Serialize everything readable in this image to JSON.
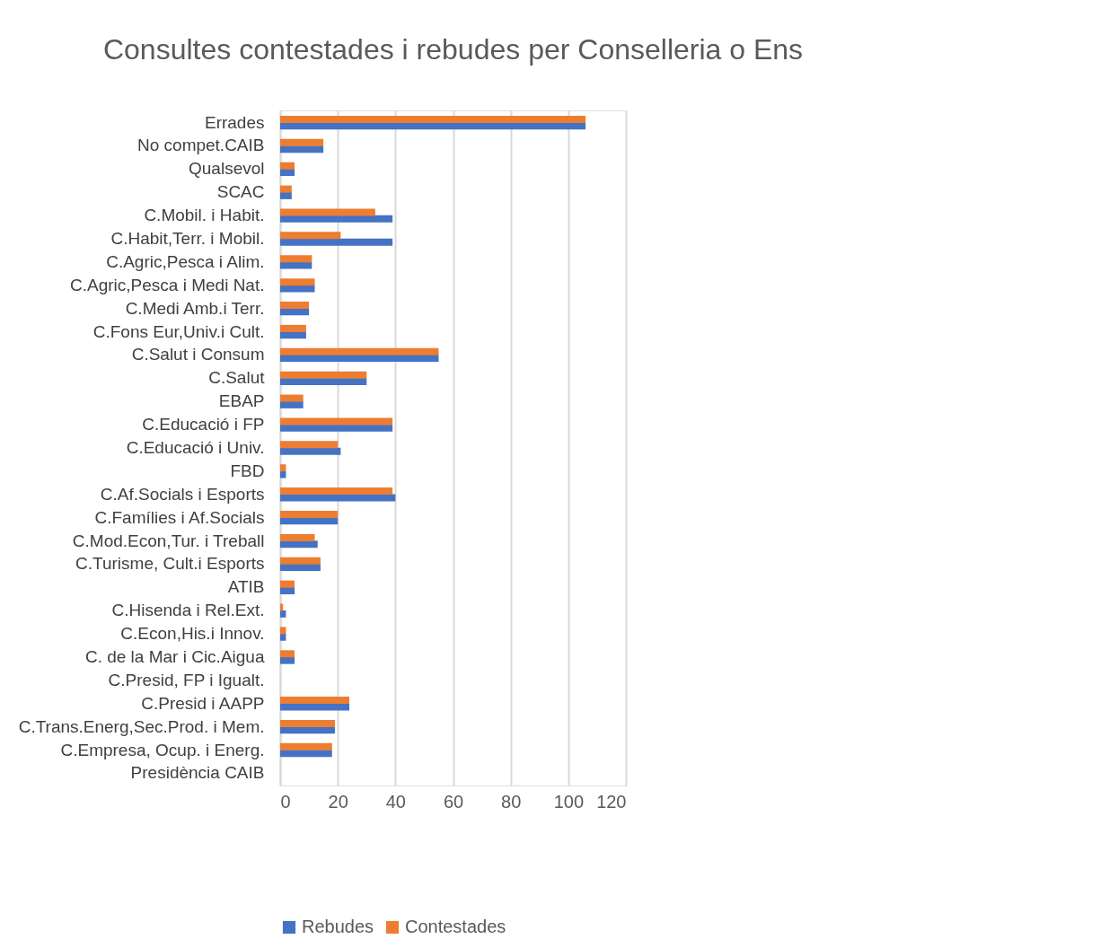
{
  "chart_data": {
    "type": "bar",
    "orientation": "horizontal",
    "title": "Consultes contestades i rebudes per Conselleria o Ens",
    "categories": [
      "Errades",
      "No compet.CAIB",
      "Qualsevol",
      "SCAC",
      "C.Mobil. i Habit.",
      "C.Habit,Terr. i Mobil.",
      "C.Agric,Pesca i Alim.",
      "C.Agric,Pesca i Medi Nat.",
      "C.Medi Amb.i Terr.",
      "C.Fons Eur,Univ.i Cult.",
      "C.Salut i Consum",
      "C.Salut",
      "EBAP",
      "C.Educació i FP",
      "C.Educació i Univ.",
      "FBD",
      "C.Af.Socials i Esports",
      "C.Famílies i Af.Socials",
      "C.Mod.Econ,Tur. i Treball",
      "C.Turisme, Cult.i Esports",
      "ATIB",
      "C.Hisenda i Rel.Ext.",
      "C.Econ,His.i Innov.",
      "C. de la Mar i Cic.Aigua",
      "C.Presid, FP i Igualt.",
      "C.Presid i AAPP",
      "C.Trans.Energ,Sec.Prod. i Mem.",
      "C.Empresa, Ocup. i Energ.",
      "Presidència CAIB"
    ],
    "series": [
      {
        "name": "Rebudes",
        "color": "#4472c4",
        "values": [
          106,
          15,
          5,
          4,
          39,
          39,
          11,
          12,
          10,
          9,
          55,
          30,
          8,
          39,
          21,
          2,
          40,
          20,
          13,
          14,
          5,
          2,
          2,
          5,
          0,
          24,
          19,
          18,
          0
        ]
      },
      {
        "name": "Contestades",
        "color": "#ed7d31",
        "values": [
          106,
          15,
          5,
          4,
          33,
          21,
          11,
          12,
          10,
          9,
          55,
          30,
          8,
          39,
          20,
          2,
          39,
          20,
          12,
          14,
          5,
          1,
          2,
          5,
          0,
          24,
          19,
          18,
          0
        ]
      }
    ],
    "xlim": [
      0,
      120
    ],
    "xticks": [
      0,
      20,
      40,
      60,
      80,
      100,
      120
    ],
    "grid": "x",
    "legend": "bottom"
  }
}
